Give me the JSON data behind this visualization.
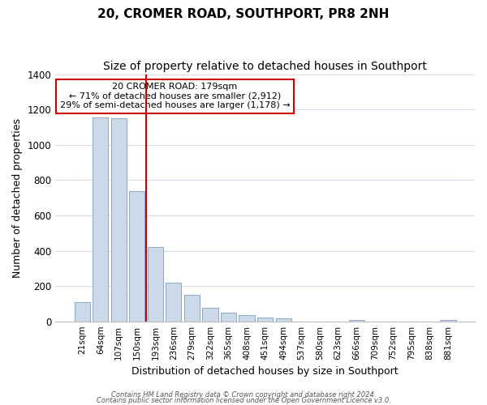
{
  "title": "20, CROMER ROAD, SOUTHPORT, PR8 2NH",
  "subtitle": "Size of property relative to detached houses in Southport",
  "xlabel": "Distribution of detached houses by size in Southport",
  "ylabel": "Number of detached properties",
  "bar_labels": [
    "21sqm",
    "64sqm",
    "107sqm",
    "150sqm",
    "193sqm",
    "236sqm",
    "279sqm",
    "322sqm",
    "365sqm",
    "408sqm",
    "451sqm",
    "494sqm",
    "537sqm",
    "580sqm",
    "623sqm",
    "666sqm",
    "709sqm",
    "752sqm",
    "795sqm",
    "838sqm",
    "881sqm"
  ],
  "bar_heights": [
    110,
    1155,
    1150,
    735,
    420,
    220,
    150,
    75,
    50,
    35,
    20,
    15,
    0,
    0,
    0,
    10,
    0,
    0,
    0,
    0,
    10
  ],
  "bar_color": "#ccd9e8",
  "bar_edgecolor": "#7a9fc0",
  "vline_color": "#cc0000",
  "vline_x_index": 3,
  "annotation_text": "20 CROMER ROAD: 179sqm\n← 71% of detached houses are smaller (2,912)\n29% of semi-detached houses are larger (1,178) →",
  "annotation_box_color": "#ffffff",
  "annotation_box_edgecolor": "#cc0000",
  "ylim": [
    0,
    1400
  ],
  "yticks": [
    0,
    200,
    400,
    600,
    800,
    1000,
    1200,
    1400
  ],
  "footer1": "Contains HM Land Registry data © Crown copyright and database right 2024.",
  "footer2": "Contains public sector information licensed under the Open Government Licence v3.0.",
  "bg_color": "#ffffff",
  "grid_color": "#d0dce8"
}
